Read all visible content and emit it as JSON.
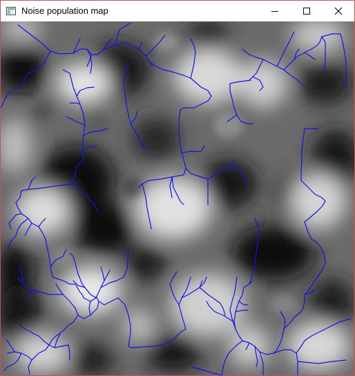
{
  "window": {
    "title": "Noise population map",
    "app_icon": "window-app-icon",
    "controls": {
      "minimize_icon": "minimize-icon",
      "maximize_icon": "maximize-icon",
      "close_icon": "close-icon"
    }
  },
  "map": {
    "terrain_colors": {
      "dark": "#050505",
      "mid": "#7a7a7a",
      "light": "#e6e6e6"
    },
    "river_color": "#1414e6"
  }
}
